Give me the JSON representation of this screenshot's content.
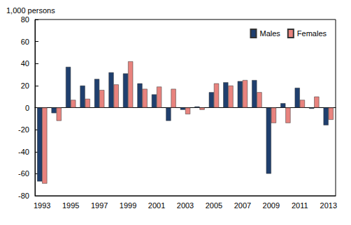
{
  "chart_data": {
    "type": "bar",
    "y_label": "1,000 persons",
    "categories": [
      "1993",
      null,
      "1995",
      null,
      "1997",
      null,
      "1999",
      null,
      "2001",
      null,
      "2003",
      null,
      "2005",
      null,
      "2007",
      null,
      "2009",
      null,
      "2011",
      null,
      "2013"
    ],
    "series": [
      {
        "name": "Males",
        "color": "#1f3f6e",
        "values": [
          -67,
          -5,
          37,
          20,
          26,
          32,
          31,
          22,
          12,
          -12,
          -2,
          1,
          14,
          23,
          24,
          25,
          -60,
          4,
          18,
          -1,
          -16
        ]
      },
      {
        "name": "Females",
        "color": "#e8837e",
        "values": [
          -69,
          -12,
          7,
          8,
          16,
          21,
          42,
          17,
          19,
          17,
          -6,
          -2,
          22,
          20,
          25,
          14,
          -14,
          -14,
          7,
          10,
          -11
        ]
      }
    ],
    "ylim": [
      -80,
      80
    ],
    "yticks": [
      -80,
      -60,
      -40,
      -20,
      0,
      20,
      40,
      60,
      80
    ],
    "grid": false,
    "legend": "top-right"
  }
}
